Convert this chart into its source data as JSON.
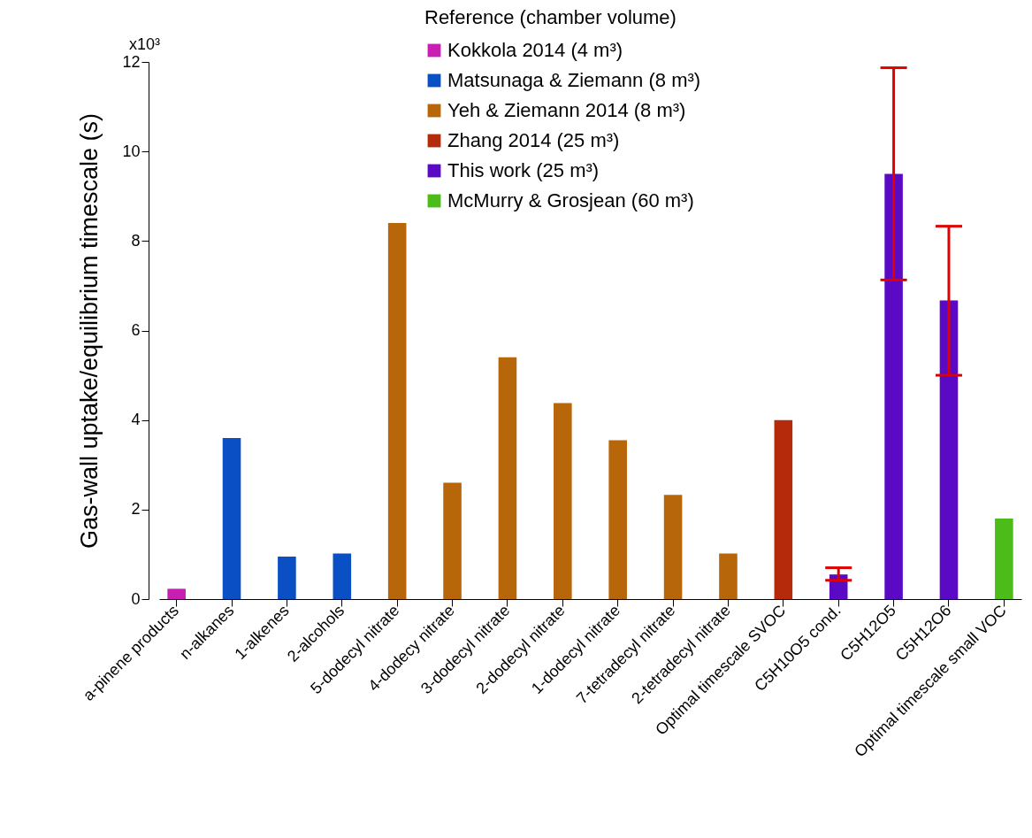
{
  "chart_data": {
    "type": "bar",
    "ylabel": "Gas-wall uptake/equilibrium timescale (s)",
    "legend_title": "Reference (chamber volume)",
    "categories": [
      "a-pinene products",
      "n-alkanes",
      "1-alkenes",
      "2-alcohols",
      "5-dodecyl nitrate",
      "4-dodecy nitrate",
      "3-dodecyl nitrate",
      "2-dodecyl nitrate",
      "1-dodecyl nitrate",
      "7-tetradecyl nitrate",
      "2-tetradecyl nitrate",
      "Optimal timescale SVOC",
      "C5H10O5 cond.",
      "C5H12O5",
      "C5H12O6",
      "Optimal timescale small VOC"
    ],
    "series": [
      {
        "name": "Kokkola 2014 (4 m³)",
        "color": "#c81eb4",
        "values": [
          0.23,
          null,
          null,
          null,
          null,
          null,
          null,
          null,
          null,
          null,
          null,
          null,
          null,
          null,
          null,
          null
        ]
      },
      {
        "name": "Matsunaga & Ziemann (8 m³)",
        "color": "#0a4fc4",
        "values": [
          null,
          3.6,
          0.95,
          1.02,
          null,
          null,
          null,
          null,
          null,
          null,
          null,
          null,
          null,
          null,
          null,
          null
        ]
      },
      {
        "name": "Yeh & Ziemann 2014  (8 m³)",
        "color": "#b8660a",
        "values": [
          null,
          null,
          null,
          null,
          8.4,
          2.6,
          5.4,
          4.38,
          3.55,
          2.33,
          1.02,
          null,
          null,
          null,
          null,
          null
        ]
      },
      {
        "name": "Zhang 2014 (25 m³)",
        "color": "#b42a0a",
        "values": [
          null,
          null,
          null,
          null,
          null,
          null,
          null,
          null,
          null,
          null,
          null,
          4.0,
          null,
          null,
          null,
          null
        ]
      },
      {
        "name": "This work (25 m³)",
        "color": "#5a0ac4",
        "values": [
          null,
          null,
          null,
          null,
          null,
          null,
          null,
          null,
          null,
          null,
          null,
          null,
          0.55,
          9.5,
          6.67,
          null
        ],
        "errors": [
          null,
          null,
          null,
          null,
          null,
          null,
          null,
          null,
          null,
          null,
          null,
          null,
          [
            0.42,
            0.7
          ],
          [
            7.13,
            11.87
          ],
          [
            5.0,
            8.33
          ],
          null
        ]
      },
      {
        "name": "McMurry & Grosjean (60 m³)",
        "color": "#4cbc1a",
        "values": [
          null,
          null,
          null,
          null,
          null,
          null,
          null,
          null,
          null,
          null,
          null,
          null,
          null,
          null,
          null,
          1.8
        ]
      }
    ],
    "ylim": [
      0,
      12
    ],
    "yticks": [
      0,
      2,
      4,
      6,
      8,
      10,
      12
    ],
    "annotations": [
      "x10³"
    ],
    "grid": false,
    "legend": "top right"
  }
}
